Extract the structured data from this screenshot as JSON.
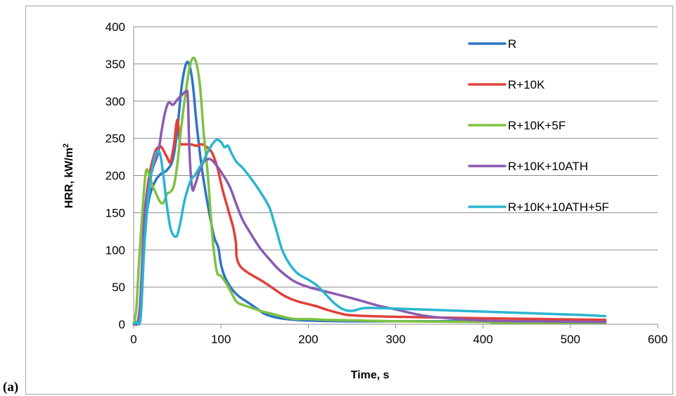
{
  "panel_label": "(a)",
  "chart_data": {
    "type": "line",
    "title": "",
    "xlabel": "Time, s",
    "ylabel_main": "HRR, kW/m",
    "ylabel_sup": "2",
    "xlim": [
      0,
      600
    ],
    "ylim": [
      0,
      400
    ],
    "xticks": [
      0,
      100,
      200,
      300,
      400,
      500,
      600
    ],
    "yticks": [
      0,
      50,
      100,
      150,
      200,
      250,
      300,
      350,
      400
    ],
    "grid": "horizontal",
    "legend_position": "right",
    "series": [
      {
        "name": "R",
        "color": "#2E75C5",
        "points": [
          [
            0,
            0
          ],
          [
            5,
            3
          ],
          [
            8,
            30
          ],
          [
            12,
            120
          ],
          [
            18,
            170
          ],
          [
            25,
            193
          ],
          [
            32,
            203
          ],
          [
            38,
            207
          ],
          [
            45,
            222
          ],
          [
            50,
            262
          ],
          [
            55,
            320
          ],
          [
            60,
            350
          ],
          [
            64,
            348
          ],
          [
            68,
            320
          ],
          [
            72,
            270
          ],
          [
            78,
            210
          ],
          [
            85,
            160
          ],
          [
            92,
            118
          ],
          [
            97,
            103
          ],
          [
            100,
            80
          ],
          [
            105,
            62
          ],
          [
            112,
            48
          ],
          [
            120,
            38
          ],
          [
            130,
            30
          ],
          [
            140,
            22
          ],
          [
            150,
            14
          ],
          [
            160,
            10
          ],
          [
            175,
            7
          ],
          [
            200,
            5
          ],
          [
            250,
            4
          ],
          [
            300,
            4
          ],
          [
            400,
            4
          ],
          [
            540,
            4
          ]
        ]
      },
      {
        "name": "R+10K",
        "color": "#E0403A",
        "points": [
          [
            0,
            0
          ],
          [
            5,
            3
          ],
          [
            9,
            40
          ],
          [
            13,
            150
          ],
          [
            18,
            200
          ],
          [
            24,
            230
          ],
          [
            28,
            238
          ],
          [
            32,
            238
          ],
          [
            38,
            225
          ],
          [
            42,
            218
          ],
          [
            46,
            240
          ],
          [
            50,
            275
          ],
          [
            53,
            245
          ],
          [
            58,
            242
          ],
          [
            65,
            242
          ],
          [
            72,
            240
          ],
          [
            78,
            242
          ],
          [
            84,
            238
          ],
          [
            90,
            230
          ],
          [
            96,
            210
          ],
          [
            102,
            180
          ],
          [
            108,
            155
          ],
          [
            114,
            130
          ],
          [
            117,
            110
          ],
          [
            118,
            90
          ],
          [
            122,
            78
          ],
          [
            130,
            70
          ],
          [
            140,
            63
          ],
          [
            150,
            56
          ],
          [
            160,
            48
          ],
          [
            170,
            40
          ],
          [
            180,
            34
          ],
          [
            190,
            30
          ],
          [
            200,
            27
          ],
          [
            210,
            24
          ],
          [
            220,
            20
          ],
          [
            235,
            15
          ],
          [
            250,
            12
          ],
          [
            300,
            10
          ],
          [
            400,
            8
          ],
          [
            540,
            6
          ]
        ]
      },
      {
        "name": "R+10K+5F",
        "color": "#7DC242",
        "points": [
          [
            0,
            0
          ],
          [
            3,
            20
          ],
          [
            6,
            80
          ],
          [
            10,
            150
          ],
          [
            14,
            205
          ],
          [
            18,
            200
          ],
          [
            22,
            185
          ],
          [
            26,
            175
          ],
          [
            30,
            165
          ],
          [
            34,
            163
          ],
          [
            38,
            175
          ],
          [
            42,
            178
          ],
          [
            46,
            186
          ],
          [
            50,
            215
          ],
          [
            55,
            270
          ],
          [
            60,
            315
          ],
          [
            64,
            345
          ],
          [
            68,
            358
          ],
          [
            72,
            350
          ],
          [
            76,
            320
          ],
          [
            80,
            260
          ],
          [
            85,
            200
          ],
          [
            90,
            120
          ],
          [
            95,
            72
          ],
          [
            100,
            65
          ],
          [
            106,
            55
          ],
          [
            112,
            42
          ],
          [
            118,
            30
          ],
          [
            125,
            26
          ],
          [
            135,
            22
          ],
          [
            145,
            18
          ],
          [
            155,
            15
          ],
          [
            165,
            12
          ],
          [
            175,
            9
          ],
          [
            185,
            7
          ],
          [
            200,
            7
          ],
          [
            220,
            6
          ],
          [
            260,
            5
          ],
          [
            300,
            4
          ],
          [
            400,
            3
          ],
          [
            420,
            2
          ],
          [
            540,
            2
          ]
        ]
      },
      {
        "name": "R+10K+10ATH",
        "color": "#8A5BB0",
        "points": [
          [
            0,
            0
          ],
          [
            5,
            5
          ],
          [
            8,
            40
          ],
          [
            12,
            140
          ],
          [
            16,
            180
          ],
          [
            22,
            210
          ],
          [
            28,
            230
          ],
          [
            32,
            260
          ],
          [
            36,
            285
          ],
          [
            40,
            298
          ],
          [
            45,
            295
          ],
          [
            50,
            302
          ],
          [
            55,
            308
          ],
          [
            60,
            313
          ],
          [
            62,
            305
          ],
          [
            64,
            230
          ],
          [
            67,
            183
          ],
          [
            70,
            186
          ],
          [
            75,
            205
          ],
          [
            80,
            218
          ],
          [
            85,
            222
          ],
          [
            90,
            220
          ],
          [
            100,
            205
          ],
          [
            110,
            185
          ],
          [
            118,
            160
          ],
          [
            125,
            140
          ],
          [
            135,
            120
          ],
          [
            145,
            102
          ],
          [
            155,
            88
          ],
          [
            165,
            75
          ],
          [
            175,
            65
          ],
          [
            185,
            57
          ],
          [
            200,
            50
          ],
          [
            220,
            44
          ],
          [
            250,
            35
          ],
          [
            280,
            25
          ],
          [
            300,
            20
          ],
          [
            330,
            12
          ],
          [
            360,
            8
          ],
          [
            400,
            5
          ],
          [
            450,
            4
          ],
          [
            540,
            3
          ]
        ]
      },
      {
        "name": "R+10K+10ATH+5F",
        "color": "#2BB5CF",
        "points": [
          [
            0,
            0
          ],
          [
            3,
            3
          ],
          [
            8,
            8
          ],
          [
            12,
            100
          ],
          [
            16,
            160
          ],
          [
            20,
            200
          ],
          [
            25,
            228
          ],
          [
            30,
            230
          ],
          [
            34,
            200
          ],
          [
            38,
            160
          ],
          [
            42,
            130
          ],
          [
            46,
            119
          ],
          [
            50,
            120
          ],
          [
            54,
            140
          ],
          [
            58,
            165
          ],
          [
            62,
            182
          ],
          [
            66,
            195
          ],
          [
            70,
            200
          ],
          [
            75,
            210
          ],
          [
            80,
            220
          ],
          [
            85,
            232
          ],
          [
            90,
            242
          ],
          [
            95,
            248
          ],
          [
            100,
            245
          ],
          [
            104,
            238
          ],
          [
            108,
            240
          ],
          [
            112,
            230
          ],
          [
            118,
            218
          ],
          [
            125,
            210
          ],
          [
            135,
            195
          ],
          [
            145,
            178
          ],
          [
            155,
            158
          ],
          [
            160,
            140
          ],
          [
            165,
            120
          ],
          [
            170,
            100
          ],
          [
            178,
            82
          ],
          [
            188,
            68
          ],
          [
            200,
            60
          ],
          [
            210,
            52
          ],
          [
            220,
            40
          ],
          [
            230,
            28
          ],
          [
            240,
            20
          ],
          [
            250,
            18
          ],
          [
            260,
            21
          ],
          [
            270,
            22
          ],
          [
            300,
            21
          ],
          [
            400,
            17
          ],
          [
            500,
            13
          ],
          [
            540,
            11
          ]
        ]
      }
    ]
  }
}
